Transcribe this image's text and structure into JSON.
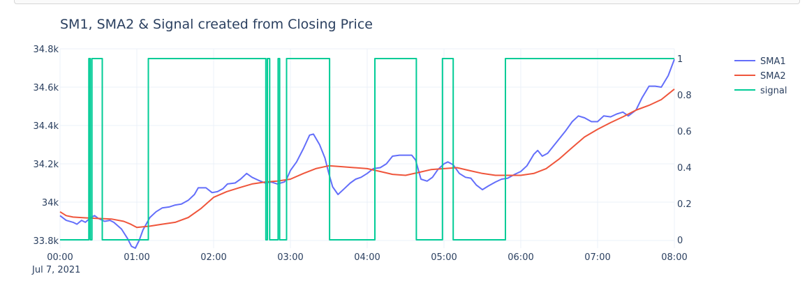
{
  "chart_data": {
    "type": "line",
    "title": "SM1, SMA2 & Signal created from Closing Price",
    "x_unit": "hours",
    "xlim": [
      0,
      8
    ],
    "x_ticks": [
      {
        "v": 0,
        "label": "00:00"
      },
      {
        "v": 1,
        "label": "01:00"
      },
      {
        "v": 2,
        "label": "02:00"
      },
      {
        "v": 3,
        "label": "03:00"
      },
      {
        "v": 4,
        "label": "04:00"
      },
      {
        "v": 5,
        "label": "05:00"
      },
      {
        "v": 6,
        "label": "06:00"
      },
      {
        "v": 7,
        "label": "07:00"
      },
      {
        "v": 8,
        "label": "08:00"
      }
    ],
    "x_date_label": "Jul 7, 2021",
    "ylim_left": [
      33760,
      34800
    ],
    "y_ticks_left": [
      {
        "v": 33800,
        "label": "33.8k"
      },
      {
        "v": 34000,
        "label": "34k"
      },
      {
        "v": 34200,
        "label": "34.2k"
      },
      {
        "v": 34400,
        "label": "34.4k"
      },
      {
        "v": 34600,
        "label": "34.6k"
      },
      {
        "v": 34800,
        "label": "34.8k"
      }
    ],
    "ylim_right": [
      0,
      1
    ],
    "y_ticks_right": [
      {
        "v": 0,
        "label": "0"
      },
      {
        "v": 0.2,
        "label": "0.2"
      },
      {
        "v": 0.4,
        "label": "0.4"
      },
      {
        "v": 0.6,
        "label": "0.6"
      },
      {
        "v": 0.8,
        "label": "0.8"
      },
      {
        "v": 1,
        "label": "1"
      }
    ],
    "grid": true,
    "legend_position": "top-right",
    "series": [
      {
        "name": "SMA1",
        "color": "#636efa",
        "axis": "left",
        "step": false,
        "points": [
          [
            0.0,
            33930
          ],
          [
            0.08,
            33905
          ],
          [
            0.17,
            33895
          ],
          [
            0.22,
            33885
          ],
          [
            0.28,
            33905
          ],
          [
            0.33,
            33895
          ],
          [
            0.4,
            33920
          ],
          [
            0.45,
            33930
          ],
          [
            0.5,
            33915
          ],
          [
            0.58,
            33900
          ],
          [
            0.65,
            33905
          ],
          [
            0.7,
            33895
          ],
          [
            0.8,
            33860
          ],
          [
            0.88,
            33810
          ],
          [
            0.93,
            33770
          ],
          [
            0.98,
            33760
          ],
          [
            1.03,
            33800
          ],
          [
            1.08,
            33855
          ],
          [
            1.17,
            33920
          ],
          [
            1.25,
            33950
          ],
          [
            1.33,
            33970
          ],
          [
            1.42,
            33975
          ],
          [
            1.5,
            33985
          ],
          [
            1.58,
            33990
          ],
          [
            1.67,
            34010
          ],
          [
            1.75,
            34040
          ],
          [
            1.8,
            34075
          ],
          [
            1.9,
            34075
          ],
          [
            1.98,
            34050
          ],
          [
            2.05,
            34055
          ],
          [
            2.12,
            34070
          ],
          [
            2.18,
            34095
          ],
          [
            2.28,
            34100
          ],
          [
            2.35,
            34120
          ],
          [
            2.43,
            34150
          ],
          [
            2.5,
            34130
          ],
          [
            2.58,
            34115
          ],
          [
            2.67,
            34100
          ],
          [
            2.75,
            34105
          ],
          [
            2.83,
            34095
          ],
          [
            2.92,
            34105
          ],
          [
            2.95,
            34120
          ],
          [
            3.0,
            34165
          ],
          [
            3.08,
            34210
          ],
          [
            3.17,
            34280
          ],
          [
            3.25,
            34350
          ],
          [
            3.3,
            34355
          ],
          [
            3.38,
            34300
          ],
          [
            3.45,
            34230
          ],
          [
            3.5,
            34150
          ],
          [
            3.55,
            34080
          ],
          [
            3.62,
            34040
          ],
          [
            3.7,
            34070
          ],
          [
            3.78,
            34100
          ],
          [
            3.85,
            34120
          ],
          [
            3.92,
            34130
          ],
          [
            4.0,
            34150
          ],
          [
            4.08,
            34175
          ],
          [
            4.17,
            34180
          ],
          [
            4.25,
            34200
          ],
          [
            4.33,
            34240
          ],
          [
            4.42,
            34245
          ],
          [
            4.5,
            34245
          ],
          [
            4.58,
            34245
          ],
          [
            4.63,
            34220
          ],
          [
            4.7,
            34120
          ],
          [
            4.78,
            34110
          ],
          [
            4.85,
            34130
          ],
          [
            4.92,
            34170
          ],
          [
            5.0,
            34200
          ],
          [
            5.05,
            34210
          ],
          [
            5.12,
            34195
          ],
          [
            5.2,
            34150
          ],
          [
            5.28,
            34130
          ],
          [
            5.35,
            34125
          ],
          [
            5.42,
            34090
          ],
          [
            5.5,
            34065
          ],
          [
            5.58,
            34085
          ],
          [
            5.67,
            34105
          ],
          [
            5.75,
            34120
          ],
          [
            5.83,
            34125
          ],
          [
            5.92,
            34145
          ],
          [
            6.0,
            34160
          ],
          [
            6.08,
            34190
          ],
          [
            6.17,
            34250
          ],
          [
            6.22,
            34270
          ],
          [
            6.28,
            34240
          ],
          [
            6.35,
            34255
          ],
          [
            6.42,
            34290
          ],
          [
            6.5,
            34330
          ],
          [
            6.58,
            34370
          ],
          [
            6.67,
            34420
          ],
          [
            6.75,
            34450
          ],
          [
            6.83,
            34440
          ],
          [
            6.92,
            34420
          ],
          [
            7.0,
            34420
          ],
          [
            7.08,
            34450
          ],
          [
            7.17,
            34445
          ],
          [
            7.25,
            34460
          ],
          [
            7.33,
            34470
          ],
          [
            7.4,
            34450
          ],
          [
            7.5,
            34480
          ],
          [
            7.58,
            34545
          ],
          [
            7.67,
            34605
          ],
          [
            7.75,
            34605
          ],
          [
            7.83,
            34600
          ],
          [
            7.92,
            34660
          ],
          [
            8.0,
            34745
          ]
        ]
      },
      {
        "name": "SMA2",
        "color": "#ef553b",
        "axis": "left",
        "step": false,
        "points": [
          [
            0.0,
            33950
          ],
          [
            0.08,
            33930
          ],
          [
            0.17,
            33922
          ],
          [
            0.33,
            33918
          ],
          [
            0.5,
            33915
          ],
          [
            0.67,
            33912
          ],
          [
            0.83,
            33900
          ],
          [
            0.92,
            33885
          ],
          [
            1.0,
            33868
          ],
          [
            1.17,
            33875
          ],
          [
            1.33,
            33885
          ],
          [
            1.5,
            33895
          ],
          [
            1.67,
            33920
          ],
          [
            1.83,
            33965
          ],
          [
            2.0,
            34025
          ],
          [
            2.17,
            34055
          ],
          [
            2.33,
            34075
          ],
          [
            2.5,
            34095
          ],
          [
            2.67,
            34105
          ],
          [
            2.83,
            34110
          ],
          [
            3.0,
            34120
          ],
          [
            3.17,
            34150
          ],
          [
            3.33,
            34175
          ],
          [
            3.5,
            34190
          ],
          [
            3.67,
            34185
          ],
          [
            3.83,
            34180
          ],
          [
            4.0,
            34175
          ],
          [
            4.17,
            34160
          ],
          [
            4.33,
            34145
          ],
          [
            4.5,
            34140
          ],
          [
            4.67,
            34155
          ],
          [
            4.83,
            34170
          ],
          [
            5.0,
            34175
          ],
          [
            5.17,
            34180
          ],
          [
            5.33,
            34165
          ],
          [
            5.5,
            34150
          ],
          [
            5.67,
            34140
          ],
          [
            5.83,
            34140
          ],
          [
            6.0,
            34140
          ],
          [
            6.17,
            34150
          ],
          [
            6.33,
            34175
          ],
          [
            6.5,
            34225
          ],
          [
            6.67,
            34285
          ],
          [
            6.83,
            34340
          ],
          [
            7.0,
            34380
          ],
          [
            7.17,
            34415
          ],
          [
            7.33,
            34445
          ],
          [
            7.5,
            34480
          ],
          [
            7.67,
            34505
          ],
          [
            7.83,
            34535
          ],
          [
            8.0,
            34590
          ]
        ]
      },
      {
        "name": "signal",
        "color": "#00cc96",
        "axis": "right",
        "step": true,
        "points": [
          [
            0.0,
            0
          ],
          [
            0.375,
            0
          ],
          [
            0.375,
            1
          ],
          [
            0.395,
            1
          ],
          [
            0.395,
            0
          ],
          [
            0.415,
            0
          ],
          [
            0.415,
            1
          ],
          [
            0.55,
            1
          ],
          [
            0.55,
            0
          ],
          [
            1.15,
            0
          ],
          [
            1.15,
            1
          ],
          [
            2.68,
            1
          ],
          [
            2.68,
            0
          ],
          [
            2.7,
            0
          ],
          [
            2.7,
            1
          ],
          [
            2.73,
            1
          ],
          [
            2.73,
            0
          ],
          [
            2.84,
            0
          ],
          [
            2.84,
            1
          ],
          [
            2.86,
            1
          ],
          [
            2.86,
            0
          ],
          [
            2.95,
            0
          ],
          [
            2.95,
            1
          ],
          [
            3.51,
            1
          ],
          [
            3.51,
            0
          ],
          [
            4.1,
            0
          ],
          [
            4.1,
            1
          ],
          [
            4.64,
            1
          ],
          [
            4.64,
            0
          ],
          [
            4.98,
            0
          ],
          [
            4.98,
            1
          ],
          [
            5.12,
            1
          ],
          [
            5.12,
            0
          ],
          [
            5.8,
            0
          ],
          [
            5.8,
            1
          ],
          [
            8.0,
            1
          ]
        ]
      }
    ]
  }
}
